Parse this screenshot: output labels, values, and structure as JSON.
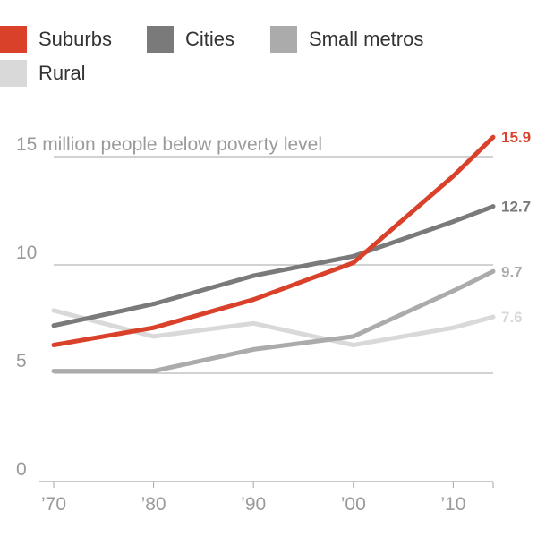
{
  "colors": {
    "suburbs": "#d9412b",
    "cities": "#7a7a7a",
    "small_metros": "#ababab",
    "rural": "#d9d9d9",
    "grid": "#a6a6a6",
    "tick": "#9a9a9a"
  },
  "legend": [
    {
      "key": "suburbs",
      "label": "Suburbs"
    },
    {
      "key": "cities",
      "label": "Cities"
    },
    {
      "key": "small_metros",
      "label": "Small metros"
    },
    {
      "key": "rural",
      "label": "Rural"
    }
  ],
  "chart_data": {
    "type": "line",
    "title": "",
    "ylabel": "15 million people below poverty level",
    "xlabel": "",
    "x": [
      1970,
      1980,
      1990,
      2000,
      2010,
      2014
    ],
    "x_ticks": [
      1970,
      1980,
      1990,
      2000,
      2010
    ],
    "x_tick_labels": [
      "’70",
      "’80",
      "’90",
      "’00",
      "’10"
    ],
    "ylim": [
      0,
      15
    ],
    "y_ticks": [
      0,
      5,
      10,
      15
    ],
    "y_tick_labels": [
      "0",
      "5",
      "10",
      "15"
    ],
    "series": [
      {
        "name": "Rural",
        "key": "rural",
        "values": [
          7.9,
          6.7,
          7.3,
          6.3,
          7.1,
          7.6
        ],
        "end_label": "7.6"
      },
      {
        "name": "Small metros",
        "key": "small_metros",
        "values": [
          5.1,
          5.1,
          6.1,
          6.7,
          8.8,
          9.7
        ],
        "end_label": "9.7"
      },
      {
        "name": "Cities",
        "key": "cities",
        "values": [
          7.2,
          8.2,
          9.5,
          10.4,
          12.0,
          12.7
        ],
        "end_label": "12.7"
      },
      {
        "name": "Suburbs",
        "key": "suburbs",
        "values": [
          6.3,
          7.1,
          8.4,
          10.1,
          14.1,
          15.9
        ],
        "end_label": "15.9"
      }
    ]
  }
}
